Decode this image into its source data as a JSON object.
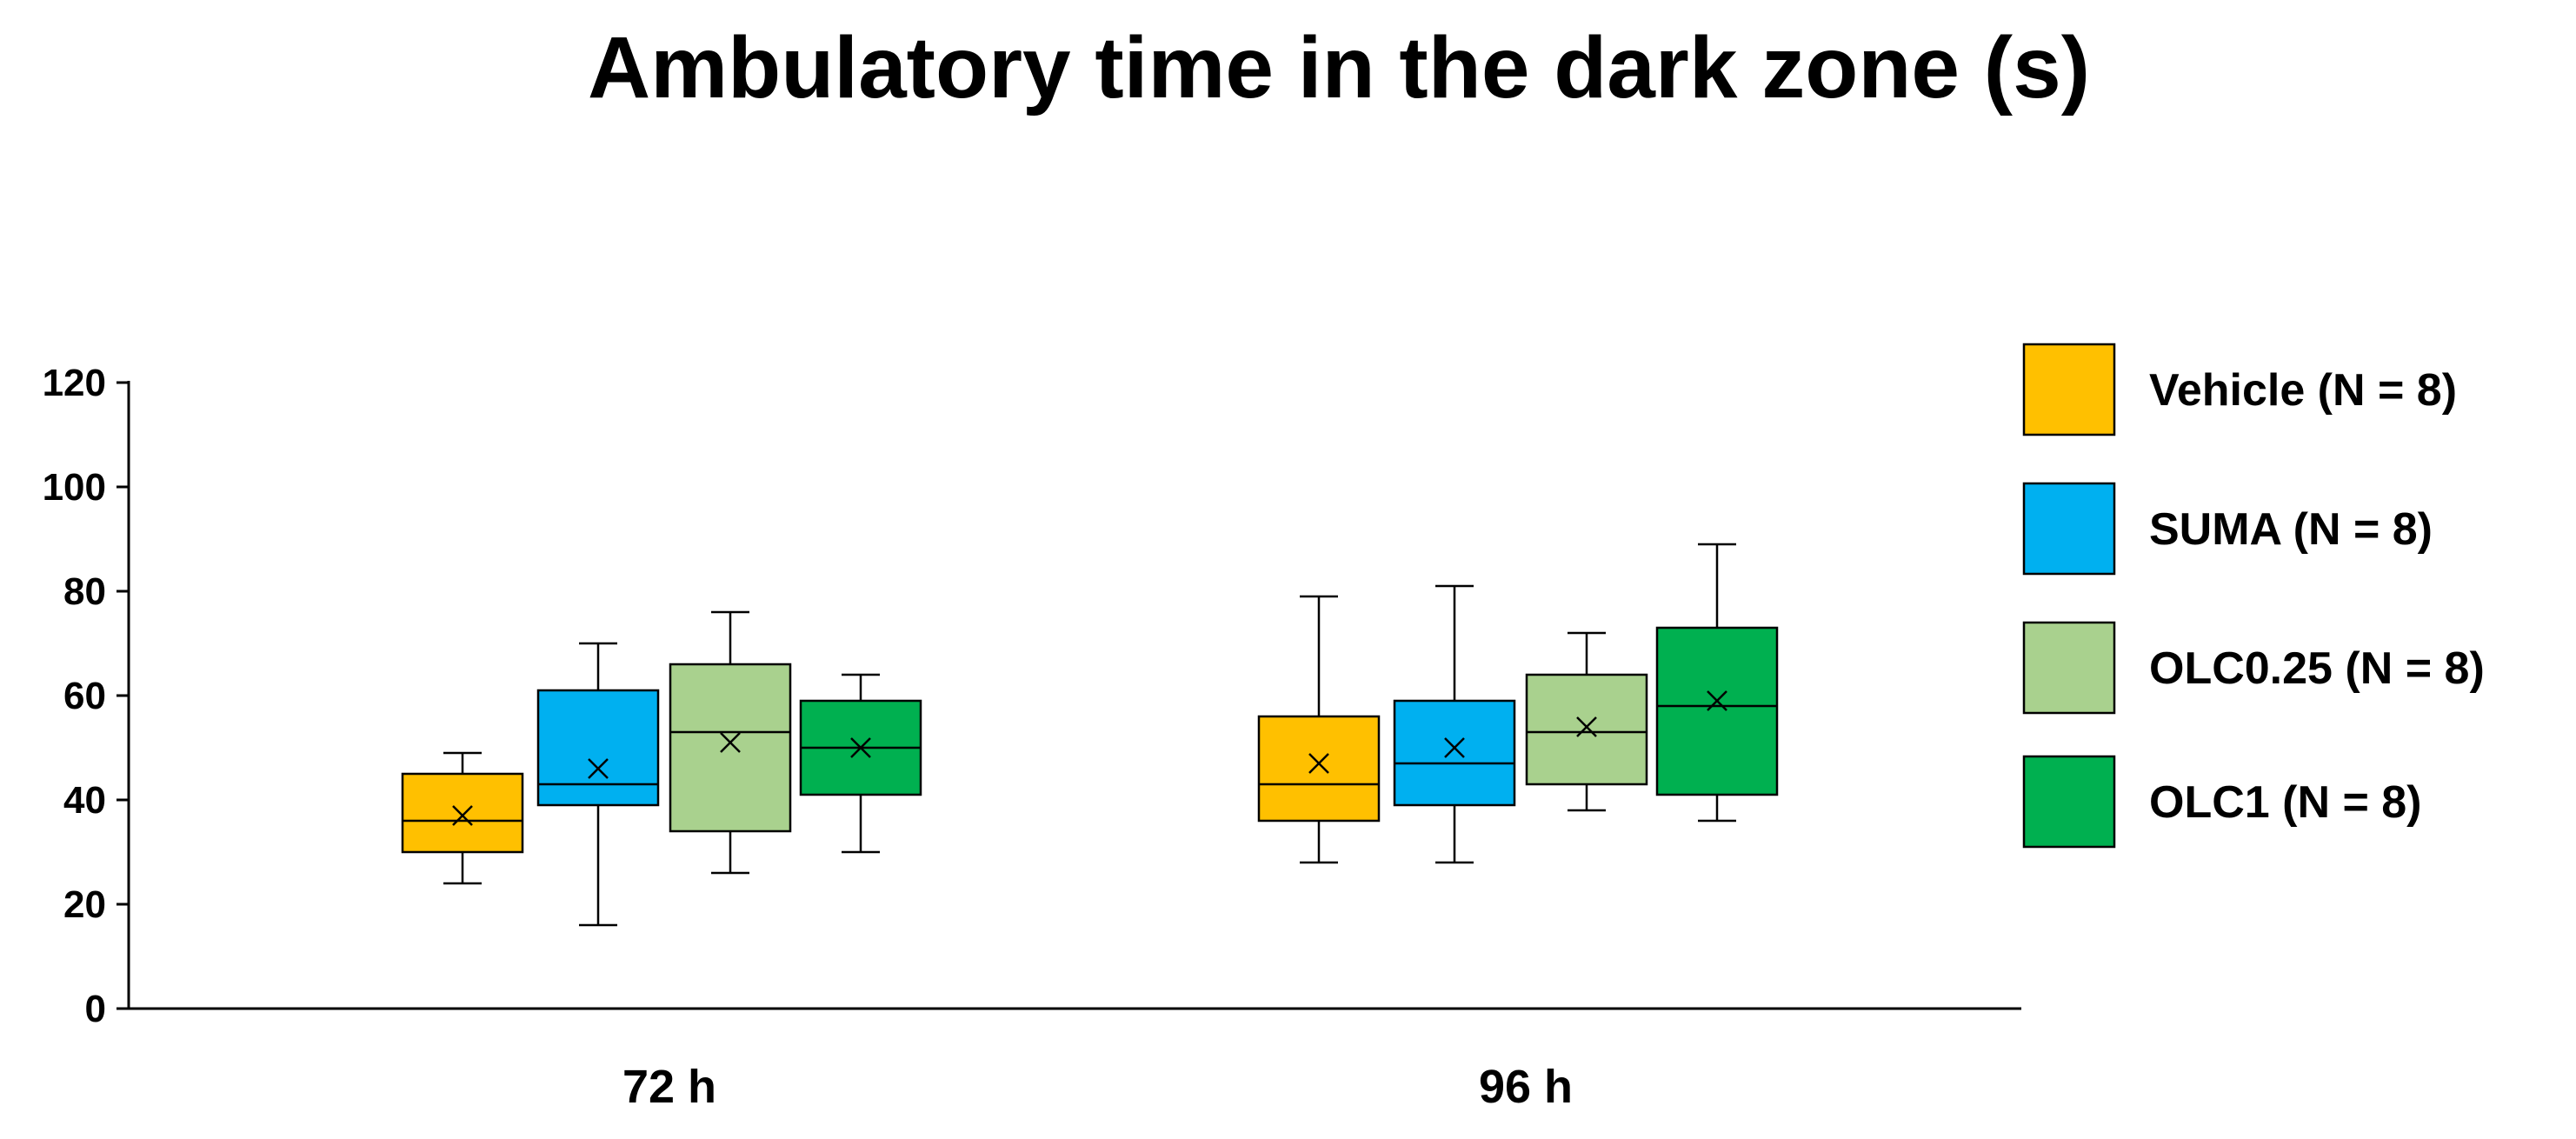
{
  "chart_data": {
    "type": "box",
    "title": "Ambulatory time in the dark zone (s)",
    "xlabel": "",
    "ylabel": "",
    "ylim": [
      0,
      120
    ],
    "yticks": [
      0,
      20,
      40,
      60,
      80,
      100,
      120
    ],
    "categories": [
      "72 h",
      "96 h"
    ],
    "grid": false,
    "legend_position": "right",
    "series": [
      {
        "name": "Vehicle (N = 8)",
        "color": "#FFC000",
        "boxes": [
          {
            "category": "72 h",
            "min": 24,
            "q1": 30,
            "median": 36,
            "q3": 45,
            "max": 49,
            "mean": 37
          },
          {
            "category": "96 h",
            "min": 28,
            "q1": 36,
            "median": 43,
            "q3": 56,
            "max": 79,
            "mean": 47
          }
        ]
      },
      {
        "name": "SUMA (N = 8)",
        "color": "#00B0F0",
        "boxes": [
          {
            "category": "72 h",
            "min": 16,
            "q1": 39,
            "median": 43,
            "q3": 61,
            "max": 70,
            "mean": 46
          },
          {
            "category": "96 h",
            "min": 28,
            "q1": 39,
            "median": 47,
            "q3": 59,
            "max": 81,
            "mean": 50
          }
        ]
      },
      {
        "name": "OLC0.25 (N = 8)",
        "color": "#A9D18E",
        "boxes": [
          {
            "category": "72 h",
            "min": 26,
            "q1": 34,
            "median": 53,
            "q3": 66,
            "max": 76,
            "mean": 51
          },
          {
            "category": "96 h",
            "min": 38,
            "q1": 43,
            "median": 53,
            "q3": 64,
            "max": 72,
            "mean": 54
          }
        ]
      },
      {
        "name": "OLC1 (N = 8)",
        "color": "#00B050",
        "boxes": [
          {
            "category": "72 h",
            "min": 30,
            "q1": 41,
            "median": 50,
            "q3": 59,
            "max": 64,
            "mean": 50
          },
          {
            "category": "96 h",
            "min": 36,
            "q1": 41,
            "median": 58,
            "q3": 73,
            "max": 89,
            "mean": 59
          }
        ]
      }
    ]
  }
}
